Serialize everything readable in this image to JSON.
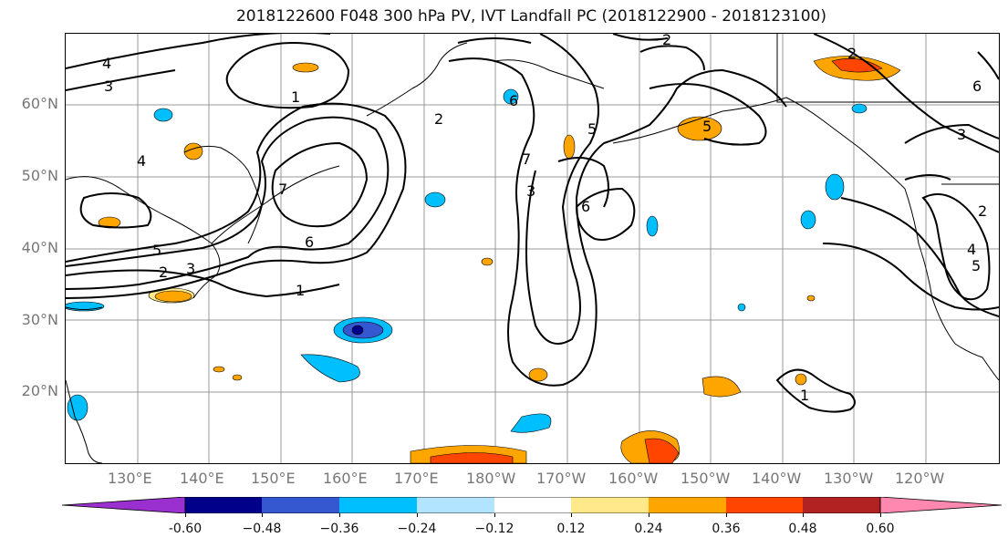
{
  "title": "2018122600 F048 300 hPa PV, IVT Landfall PC (2018122900 - 2018123100)",
  "lat_labels": [
    "60°N",
    "50°N",
    "40°N",
    "30°N",
    "20°N"
  ],
  "lon_labels": [
    "130°E",
    "140°E",
    "150°E",
    "160°E",
    "170°E",
    "180°W",
    "170°W",
    "160°W",
    "150°W",
    "140°W",
    "130°W",
    "120°W"
  ],
  "contour_labels": [
    "4",
    "3",
    "1",
    "2",
    "4",
    "7",
    "6",
    "5",
    "2",
    "3",
    "1",
    "2",
    "6",
    "5",
    "5",
    "7",
    "6",
    "3",
    "2",
    "3",
    "4",
    "1",
    "5",
    "6",
    "2"
  ],
  "colorbar": {
    "ticks": [
      "-0.60",
      "−0.48",
      "−0.36",
      "−0.24",
      "−0.12",
      "0.12",
      "0.24",
      "0.36",
      "0.48",
      "0.60"
    ],
    "colors": [
      "#9b30d0",
      "#00008b",
      "#3558d0",
      "#00bfff",
      "#b2e4ff",
      "#ffffff",
      "#ffe98a",
      "#ffa500",
      "#ff4500",
      "#b22222",
      "#ff88b0"
    ]
  },
  "colors": {
    "land_outline": "#000000",
    "grid": "#999999",
    "contour": "#000000",
    "lat_lon_label": "#777777"
  }
}
